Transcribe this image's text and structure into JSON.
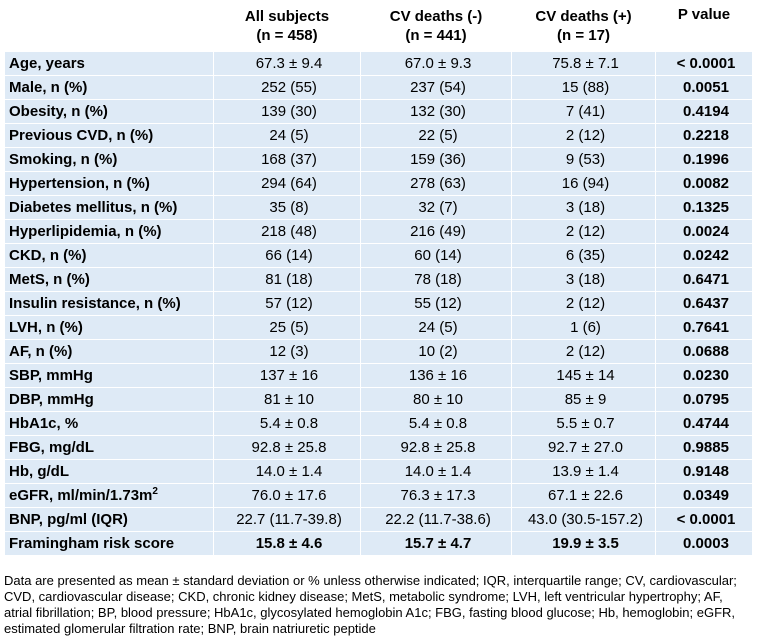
{
  "table": {
    "headers": {
      "label": "",
      "all": [
        "All subjects",
        "(n = 458)"
      ],
      "neg": [
        "CV deaths (-)",
        "(n = 441)"
      ],
      "pos": [
        "CV deaths (+)",
        "(n = 17)"
      ],
      "p": "P value"
    },
    "rows": [
      {
        "label": "Age, years",
        "all": "67.3 ± 9.4",
        "neg": "67.0 ± 9.3",
        "pos": "75.8 ± 7.1",
        "p": "< 0.0001"
      },
      {
        "label": "Male, n (%)",
        "all": "252 (55)",
        "neg": "237 (54)",
        "pos": "15 (88)",
        "p": "0.0051"
      },
      {
        "label": "Obesity, n (%)",
        "all": "139 (30)",
        "neg": "132 (30)",
        "pos": "7 (41)",
        "p": "0.4194"
      },
      {
        "label": "Previous CVD, n (%)",
        "all": "24 (5)",
        "neg": "22 (5)",
        "pos": "2 (12)",
        "p": "0.2218"
      },
      {
        "label": "Smoking, n (%)",
        "all": "168 (37)",
        "neg": "159 (36)",
        "pos": "9 (53)",
        "p": "0.1996"
      },
      {
        "label": "Hypertension, n (%)",
        "all": "294 (64)",
        "neg": "278 (63)",
        "pos": "16 (94)",
        "p": "0.0082"
      },
      {
        "label": "Diabetes mellitus, n (%)",
        "all": "35 (8)",
        "neg": "32 (7)",
        "pos": "3 (18)",
        "p": "0.1325"
      },
      {
        "label": "Hyperlipidemia, n (%)",
        "all": "218 (48)",
        "neg": "216 (49)",
        "pos": "2 (12)",
        "p": "0.0024"
      },
      {
        "label": "CKD, n (%)",
        "all": "66 (14)",
        "neg": "60 (14)",
        "pos": "6 (35)",
        "p": "0.0242"
      },
      {
        "label": "MetS, n (%)",
        "all": "81 (18)",
        "neg": "78 (18)",
        "pos": "3 (18)",
        "p": "0.6471"
      },
      {
        "label": "Insulin resistance, n (%)",
        "all": "57 (12)",
        "neg": "55 (12)",
        "pos": "2 (12)",
        "p": "0.6437"
      },
      {
        "label": "LVH, n (%)",
        "all": "25 (5)",
        "neg": "24 (5)",
        "pos": "1 (6)",
        "p": "0.7641"
      },
      {
        "label": "AF, n (%)",
        "all": "12 (3)",
        "neg": "10 (2)",
        "pos": "2 (12)",
        "p": "0.0688"
      },
      {
        "label": "SBP, mmHg",
        "all": "137 ± 16",
        "neg": "136 ± 16",
        "pos": "145 ± 14",
        "p": "0.0230"
      },
      {
        "label": "DBP, mmHg",
        "all": "81 ± 10",
        "neg": "80 ± 10",
        "pos": "85 ± 9",
        "p": "0.0795"
      },
      {
        "label": "HbA1c, %",
        "all": "5.4 ± 0.8",
        "neg": "5.4 ± 0.8",
        "pos": "5.5 ± 0.7",
        "p": "0.4744"
      },
      {
        "label": "FBG, mg/dL",
        "all": "92.8 ± 25.8",
        "neg": "92.8 ± 25.8",
        "pos": "92.7 ± 27.0",
        "p": "0.9885"
      },
      {
        "label": "Hb, g/dL",
        "all": "14.0 ± 1.4",
        "neg": "14.0 ± 1.4",
        "pos": "13.9 ± 1.4",
        "p": "0.9148"
      },
      {
        "label": "eGFR, ml/min/1.73m",
        "label_sup": "2",
        "all": "76.0 ± 17.6",
        "neg": "76.3 ± 17.3",
        "pos": "67.1 ± 22.6",
        "p": "0.0349"
      },
      {
        "label": "BNP, pg/ml (IQR)",
        "all": "22.7 (11.7-39.8)",
        "neg": "22.2 (11.7-38.6)",
        "pos": "43.0 (30.5-157.2)",
        "p": "< 0.0001"
      },
      {
        "label": "Framingham risk score",
        "all": "15.8 ± 4.6",
        "neg": "15.7 ± 4.7",
        "pos": "19.9 ± 3.5",
        "p": "0.0003",
        "bold": true
      }
    ]
  },
  "footnote": "Data are presented as mean ± standard deviation or % unless otherwise indicated; IQR, interquartile range; CV, cardiovascular; CVD, cardiovascular disease; CKD, chronic kidney disease; MetS, metabolic syndrome; LVH, left ventricular hypertrophy; AF, atrial fibrillation; BP, blood pressure; HbA1c, glycosylated hemoglobin A1c; FBG, fasting blood glucose; Hb, hemoglobin; eGFR, estimated glomerular filtration rate; BNP, brain natriuretic peptide",
  "colors": {
    "row_background": "#deeaf6",
    "header_background": "#ffffff",
    "text": "#000000"
  }
}
